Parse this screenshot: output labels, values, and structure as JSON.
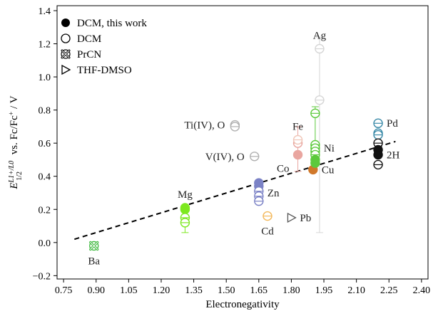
{
  "chart_data": {
    "type": "scatter",
    "xlabel": "Electronegativity",
    "ylabel_parts": {
      "base": "E",
      "sup": "L1+/L0",
      "sub": "1/2",
      "rest": " vs. Fc/Fc",
      "sup2": "+",
      "tail": " / V"
    },
    "xlim": [
      0.72,
      2.43
    ],
    "ylim": [
      -0.22,
      1.43
    ],
    "xticks": [
      "0.75",
      "0.90",
      "1.05",
      "1.20",
      "1.35",
      "1.50",
      "1.65",
      "1.80",
      "1.95",
      "2.10",
      "2.25",
      "2.40"
    ],
    "yticks": [
      "−0.2",
      "0.0",
      "0.2",
      "0.4",
      "0.6",
      "0.8",
      "1.0",
      "1.2",
      "1.4"
    ],
    "xtick_values": [
      0.75,
      0.9,
      1.05,
      1.2,
      1.35,
      1.5,
      1.65,
      1.8,
      1.95,
      2.1,
      2.25,
      2.4
    ],
    "ytick_values": [
      -0.2,
      0.0,
      0.2,
      0.4,
      0.6,
      0.8,
      1.0,
      1.2,
      1.4
    ],
    "legend": {
      "placement": "top-left",
      "entries": [
        {
          "label": "DCM, this work",
          "marker": "filled-circle"
        },
        {
          "label": "DCM",
          "marker": "open-circle"
        },
        {
          "label": "PrCN",
          "marker": "x-circle"
        },
        {
          "label": "THF-DMSO",
          "marker": "triangle-right"
        }
      ]
    },
    "trendline": {
      "style": "dashed",
      "x": [
        0.8,
        2.28
      ],
      "y": [
        0.02,
        0.61
      ]
    },
    "series": [
      {
        "metal": "Ba",
        "color": "#3cb83c",
        "points": [
          {
            "x": 0.89,
            "y": -0.02,
            "marker": "x-circle"
          }
        ]
      },
      {
        "metal": "Mg",
        "color": "#7de81f",
        "points": [
          {
            "x": 1.31,
            "y": 0.21,
            "marker": "filled-circle"
          },
          {
            "x": 1.31,
            "y": 0.2,
            "marker": "filled-circle"
          },
          {
            "x": 1.31,
            "y": 0.15,
            "marker": "open-circle"
          },
          {
            "x": 1.31,
            "y": 0.12,
            "marker": "open-circle",
            "err_low": 0.06,
            "err_high": 0.17
          }
        ]
      },
      {
        "metal": "Ti(IV), O",
        "color": "#b0b0b0",
        "points": [
          {
            "x": 1.54,
            "y": 0.71,
            "marker": "open-circle"
          },
          {
            "x": 1.54,
            "y": 0.7,
            "marker": "open-circle"
          }
        ]
      },
      {
        "metal": "V(IV), O",
        "color": "#b0b0b0",
        "points": [
          {
            "x": 1.63,
            "y": 0.52,
            "marker": "open-circle"
          }
        ]
      },
      {
        "metal": "Zn",
        "color": "#7b82c6",
        "points": [
          {
            "x": 1.65,
            "y": 0.36,
            "marker": "filled-circle"
          },
          {
            "x": 1.65,
            "y": 0.34,
            "marker": "filled-circle"
          },
          {
            "x": 1.65,
            "y": 0.31,
            "marker": "open-circle"
          },
          {
            "x": 1.65,
            "y": 0.28,
            "marker": "open-circle"
          },
          {
            "x": 1.65,
            "y": 0.25,
            "marker": "open-circle"
          }
        ]
      },
      {
        "metal": "Cd",
        "color": "#f3b85a",
        "points": [
          {
            "x": 1.69,
            "y": 0.16,
            "marker": "open-circle"
          }
        ]
      },
      {
        "metal": "Pb",
        "color": "#555555",
        "points": [
          {
            "x": 1.8,
            "y": 0.15,
            "marker": "triangle-right"
          }
        ]
      },
      {
        "metal": "Co",
        "color": "#e9a6a0",
        "points": [
          {
            "x": 1.83,
            "y": 0.6,
            "marker": "open-circle",
            "err_low": 0.43,
            "err_high": 0.7
          },
          {
            "x": 1.83,
            "y": 0.53,
            "marker": "filled-circle"
          }
        ]
      },
      {
        "metal": "Fe",
        "color": "#f0c6b8",
        "points": [
          {
            "x": 1.83,
            "y": 0.62,
            "marker": "open-circle"
          }
        ]
      },
      {
        "metal": "Cu",
        "color": "#d0782a",
        "points": [
          {
            "x": 1.9,
            "y": 0.44,
            "marker": "filled-circle"
          }
        ]
      },
      {
        "metal": "Ni",
        "color": "#5cc93c",
        "points": [
          {
            "x": 1.91,
            "y": 0.78,
            "marker": "open-circle",
            "err_low": 0.5,
            "err_high": 0.82
          },
          {
            "x": 1.91,
            "y": 0.59,
            "marker": "open-circle"
          },
          {
            "x": 1.91,
            "y": 0.57,
            "marker": "open-circle"
          },
          {
            "x": 1.91,
            "y": 0.55,
            "marker": "open-circle"
          },
          {
            "x": 1.91,
            "y": 0.53,
            "marker": "open-circle"
          },
          {
            "x": 1.91,
            "y": 0.5,
            "marker": "filled-circle"
          },
          {
            "x": 1.91,
            "y": 0.48,
            "marker": "filled-circle"
          }
        ]
      },
      {
        "metal": "Ag",
        "color": "#d6d6d6",
        "points": [
          {
            "x": 1.93,
            "y": 1.17,
            "marker": "open-circle",
            "err_low": 0.06,
            "err_high": 1.24
          },
          {
            "x": 1.93,
            "y": 0.86,
            "marker": "open-circle"
          }
        ]
      },
      {
        "metal": "Pd",
        "color": "#3a8aa8",
        "points": [
          {
            "x": 2.2,
            "y": 0.72,
            "marker": "open-circle"
          },
          {
            "x": 2.2,
            "y": 0.66,
            "marker": "open-circle"
          },
          {
            "x": 2.2,
            "y": 0.65,
            "marker": "open-circle"
          }
        ]
      },
      {
        "metal": "2H",
        "color": "#111111",
        "points": [
          {
            "x": 2.2,
            "y": 0.6,
            "marker": "open-circle"
          },
          {
            "x": 2.2,
            "y": 0.56,
            "marker": "filled-circle"
          },
          {
            "x": 2.2,
            "y": 0.53,
            "marker": "filled-circle"
          },
          {
            "x": 2.2,
            "y": 0.47,
            "marker": "open-circle"
          }
        ]
      }
    ],
    "point_labels": [
      {
        "text": "Ba",
        "x": 0.89,
        "y": -0.02,
        "pos": "below"
      },
      {
        "text": "Mg",
        "x": 1.31,
        "y": 0.21,
        "pos": "above"
      },
      {
        "text": "Ti(IV), O",
        "x": 1.54,
        "y": 0.71,
        "pos": "left"
      },
      {
        "text": "V(IV), O",
        "x": 1.63,
        "y": 0.52,
        "pos": "left"
      },
      {
        "text": "Zn",
        "x": 1.65,
        "y": 0.3,
        "pos": "right"
      },
      {
        "text": "Cd",
        "x": 1.69,
        "y": 0.16,
        "pos": "below"
      },
      {
        "text": "Pb",
        "x": 1.8,
        "y": 0.15,
        "pos": "right"
      },
      {
        "text": "Co",
        "x": 1.83,
        "y": 0.53,
        "pos": "below-left"
      },
      {
        "text": "Fe",
        "x": 1.83,
        "y": 0.62,
        "pos": "above"
      },
      {
        "text": "Cu",
        "x": 1.9,
        "y": 0.44,
        "pos": "right"
      },
      {
        "text": "Ni",
        "x": 1.91,
        "y": 0.57,
        "pos": "right"
      },
      {
        "text": "Ag",
        "x": 1.93,
        "y": 1.17,
        "pos": "above"
      },
      {
        "text": "Pd",
        "x": 2.2,
        "y": 0.72,
        "pos": "right"
      },
      {
        "text": "2H",
        "x": 2.2,
        "y": 0.53,
        "pos": "right"
      }
    ]
  }
}
